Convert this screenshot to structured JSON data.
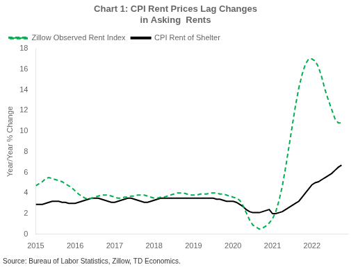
{
  "chart_data": {
    "type": "line",
    "title": "Chart 1: CPI Rent Prices Lag Changes\nin Asking  Rents",
    "ylabel": "Year/Year % Change",
    "annotations": [
      "Source: Bureau of Labor Statistics, Zillow, TD Economics."
    ],
    "x": [
      2015.0,
      2015.083,
      2015.167,
      2015.25,
      2015.333,
      2015.417,
      2015.5,
      2015.583,
      2015.667,
      2015.75,
      2015.833,
      2015.917,
      2016.0,
      2016.083,
      2016.167,
      2016.25,
      2016.333,
      2016.417,
      2016.5,
      2016.583,
      2016.667,
      2016.75,
      2016.833,
      2016.917,
      2017.0,
      2017.083,
      2017.167,
      2017.25,
      2017.333,
      2017.417,
      2017.5,
      2017.583,
      2017.667,
      2017.75,
      2017.833,
      2017.917,
      2018.0,
      2018.083,
      2018.167,
      2018.25,
      2018.333,
      2018.417,
      2018.5,
      2018.583,
      2018.667,
      2018.75,
      2018.833,
      2018.917,
      2019.0,
      2019.083,
      2019.167,
      2019.25,
      2019.333,
      2019.417,
      2019.5,
      2019.583,
      2019.667,
      2019.75,
      2019.833,
      2019.917,
      2020.0,
      2020.083,
      2020.167,
      2020.25,
      2020.333,
      2020.417,
      2020.5,
      2020.583,
      2020.667,
      2020.75,
      2020.833,
      2020.917,
      2021.0,
      2021.083,
      2021.167,
      2021.25,
      2021.333,
      2021.417,
      2021.5,
      2021.583,
      2021.667,
      2021.75,
      2021.833,
      2021.917,
      2022.0,
      2022.083,
      2022.167,
      2022.25,
      2022.333,
      2022.417,
      2022.5,
      2022.583,
      2022.667,
      2022.75
    ],
    "series": [
      {
        "name": "Zillow Observed Rent Index",
        "color": "#00b050",
        "line_style": "dashed",
        "values": [
          4.7,
          4.9,
          5.1,
          5.4,
          5.5,
          5.4,
          5.3,
          5.2,
          5.1,
          4.9,
          4.7,
          4.5,
          4.2,
          3.9,
          3.7,
          3.5,
          3.4,
          3.5,
          3.6,
          3.7,
          3.8,
          3.8,
          3.8,
          3.7,
          3.6,
          3.5,
          3.5,
          3.6,
          3.6,
          3.7,
          3.7,
          3.8,
          3.8,
          3.8,
          3.7,
          3.6,
          3.5,
          3.5,
          3.6,
          3.6,
          3.7,
          3.8,
          3.9,
          4.0,
          4.0,
          4.0,
          3.9,
          3.8,
          3.8,
          3.8,
          3.9,
          3.9,
          3.9,
          4.0,
          4.0,
          4.0,
          3.9,
          3.9,
          3.8,
          3.7,
          3.6,
          3.5,
          3.3,
          2.8,
          2.1,
          1.4,
          0.9,
          0.7,
          0.5,
          0.6,
          0.8,
          1.1,
          1.5,
          2.2,
          3.3,
          4.7,
          6.5,
          8.5,
          10.5,
          12.5,
          14.2,
          15.5,
          16.5,
          17.0,
          17.0,
          16.8,
          16.2,
          15.2,
          14.0,
          13.0,
          12.1,
          11.2,
          10.8,
          10.8
        ]
      },
      {
        "name": "CPI Rent of Shelter",
        "color": "#000000",
        "line_style": "solid",
        "values": [
          2.9,
          2.9,
          2.9,
          3.0,
          3.1,
          3.2,
          3.2,
          3.2,
          3.1,
          3.1,
          3.0,
          3.0,
          3.0,
          3.1,
          3.2,
          3.3,
          3.4,
          3.5,
          3.5,
          3.5,
          3.4,
          3.3,
          3.2,
          3.1,
          3.1,
          3.2,
          3.3,
          3.4,
          3.5,
          3.5,
          3.4,
          3.3,
          3.2,
          3.1,
          3.1,
          3.2,
          3.3,
          3.4,
          3.5,
          3.5,
          3.5,
          3.5,
          3.5,
          3.5,
          3.5,
          3.5,
          3.5,
          3.5,
          3.5,
          3.5,
          3.5,
          3.5,
          3.5,
          3.5,
          3.5,
          3.4,
          3.4,
          3.3,
          3.2,
          3.2,
          3.2,
          3.1,
          2.9,
          2.7,
          2.4,
          2.2,
          2.1,
          2.1,
          2.1,
          2.2,
          2.3,
          2.4,
          2.0,
          2.0,
          2.1,
          2.2,
          2.4,
          2.6,
          2.8,
          3.0,
          3.2,
          3.6,
          4.0,
          4.4,
          4.8,
          5.0,
          5.1,
          5.3,
          5.5,
          5.7,
          5.9,
          6.2,
          6.5,
          6.7
        ]
      }
    ],
    "xlim": [
      2015.0,
      2022.92
    ],
    "xticks": [
      2015,
      2016,
      2017,
      2018,
      2019,
      2020,
      2021,
      2022
    ],
    "ylim": [
      0,
      18
    ],
    "yticks": [
      0,
      2,
      4,
      6,
      8,
      10,
      12,
      14,
      16,
      18
    ],
    "grid": false,
    "legend": "top-left"
  }
}
